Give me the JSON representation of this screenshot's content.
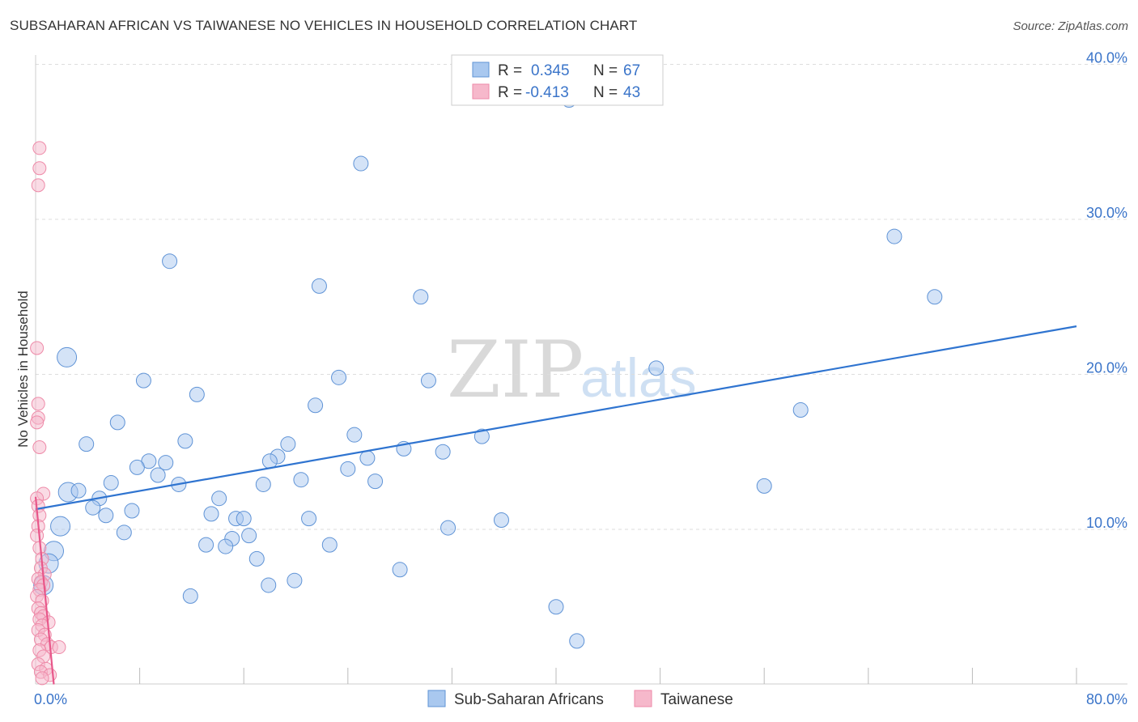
{
  "header": {
    "title": "SUBSAHARAN AFRICAN VS TAIWANESE NO VEHICLES IN HOUSEHOLD CORRELATION CHART",
    "source": "Source: ZipAtlas.com"
  },
  "watermark": {
    "zip": "ZIP",
    "atlas": "atlas"
  },
  "colors": {
    "blue_fill": "#a9c8ef",
    "blue_stroke": "#5f93d6",
    "blue_line": "#2f74d0",
    "pink_fill": "#f6b8cb",
    "pink_stroke": "#ee8aa8",
    "pink_line": "#e8578a",
    "tick_text": "#3a74c9",
    "grid": "#dddddd"
  },
  "chart_data": {
    "type": "scatter",
    "title": "SUBSAHARAN AFRICAN VS TAIWANESE NO VEHICLES IN HOUSEHOLD CORRELATION CHART",
    "xlabel": "",
    "ylabel": "No Vehicles in Household",
    "xlim": [
      0,
      80
    ],
    "ylim": [
      0,
      42
    ],
    "x_tick_labels": {
      "min": "0.0%",
      "max": "80.0%"
    },
    "y_ticks": [
      10,
      20,
      30,
      40
    ],
    "y_tick_labels": [
      "10.0%",
      "20.0%",
      "30.0%",
      "40.0%"
    ],
    "legend": {
      "entries": [
        {
          "r_label": "R =",
          "r": "0.345",
          "n_label": "N =",
          "n": "67"
        },
        {
          "r_label": "R =",
          "r": "-0.413",
          "n_label": "N =",
          "n": "43"
        }
      ],
      "series_names": [
        "Sub-Saharan Africans",
        "Taiwanese"
      ]
    },
    "series": [
      {
        "name": "Sub-Saharan Africans",
        "points": [
          [
            41,
            37.7
          ],
          [
            25,
            33.6
          ],
          [
            66,
            28.9
          ],
          [
            10.3,
            27.3
          ],
          [
            21.8,
            25.7
          ],
          [
            29.6,
            25.0
          ],
          [
            69.1,
            25.0
          ],
          [
            2.4,
            21.1
          ],
          [
            47.7,
            20.4
          ],
          [
            8.3,
            19.6
          ],
          [
            23.3,
            19.8
          ],
          [
            30.2,
            19.6
          ],
          [
            12.4,
            18.7
          ],
          [
            21.5,
            18.0
          ],
          [
            58.8,
            17.7
          ],
          [
            6.3,
            16.9
          ],
          [
            11.5,
            15.7
          ],
          [
            3.9,
            15.5
          ],
          [
            24.5,
            16.1
          ],
          [
            34.3,
            16.0
          ],
          [
            19.4,
            15.5
          ],
          [
            28.3,
            15.2
          ],
          [
            31.3,
            15.0
          ],
          [
            8.7,
            14.4
          ],
          [
            10,
            14.3
          ],
          [
            7.8,
            14.0
          ],
          [
            18.6,
            14.7
          ],
          [
            25.5,
            14.6
          ],
          [
            18.0,
            14.4
          ],
          [
            9.4,
            13.5
          ],
          [
            24.0,
            13.9
          ],
          [
            20.4,
            13.2
          ],
          [
            26.1,
            13.1
          ],
          [
            5.8,
            13.0
          ],
          [
            11.0,
            12.9
          ],
          [
            17.5,
            12.9
          ],
          [
            56,
            12.8
          ],
          [
            2.5,
            12.4
          ],
          [
            3.3,
            12.5
          ],
          [
            4.9,
            12.0
          ],
          [
            14.1,
            12.0
          ],
          [
            4.4,
            11.4
          ],
          [
            7.4,
            11.2
          ],
          [
            13.5,
            11.0
          ],
          [
            5.4,
            10.9
          ],
          [
            15.4,
            10.7
          ],
          [
            16.0,
            10.7
          ],
          [
            21.0,
            10.7
          ],
          [
            35.8,
            10.6
          ],
          [
            1.9,
            10.2
          ],
          [
            31.7,
            10.1
          ],
          [
            6.8,
            9.8
          ],
          [
            16.4,
            9.6
          ],
          [
            15.1,
            9.4
          ],
          [
            13.1,
            9.0
          ],
          [
            14.6,
            8.9
          ],
          [
            22.6,
            9.0
          ],
          [
            1.4,
            8.6
          ],
          [
            17.0,
            8.1
          ],
          [
            1.0,
            7.8
          ],
          [
            28.0,
            7.4
          ],
          [
            0.6,
            6.4
          ],
          [
            19.9,
            6.7
          ],
          [
            17.9,
            6.4
          ],
          [
            11.9,
            5.7
          ],
          [
            40,
            5.0
          ],
          [
            41.6,
            2.8
          ]
        ],
        "trendline": {
          "x": [
            0,
            80
          ],
          "y": [
            11.3,
            23.1
          ]
        }
      },
      {
        "name": "Taiwanese",
        "points": [
          [
            0.3,
            34.6
          ],
          [
            0.3,
            33.3
          ],
          [
            0.2,
            32.2
          ],
          [
            0.1,
            21.7
          ],
          [
            0.2,
            18.1
          ],
          [
            0.2,
            17.2
          ],
          [
            0.1,
            16.9
          ],
          [
            0.3,
            15.3
          ],
          [
            0.6,
            12.3
          ],
          [
            0.1,
            12.0
          ],
          [
            0.2,
            11.5
          ],
          [
            0.3,
            10.9
          ],
          [
            0.2,
            10.2
          ],
          [
            0.1,
            9.6
          ],
          [
            0.3,
            8.8
          ],
          [
            0.5,
            8.1
          ],
          [
            0.4,
            7.5
          ],
          [
            0.7,
            7.1
          ],
          [
            0.2,
            6.8
          ],
          [
            0.4,
            6.6
          ],
          [
            0.6,
            6.4
          ],
          [
            0.3,
            6.1
          ],
          [
            0.1,
            5.7
          ],
          [
            0.5,
            5.4
          ],
          [
            0.2,
            4.9
          ],
          [
            0.4,
            4.6
          ],
          [
            0.6,
            4.4
          ],
          [
            0.3,
            4.2
          ],
          [
            1.0,
            4.0
          ],
          [
            0.5,
            3.8
          ],
          [
            0.2,
            3.5
          ],
          [
            0.7,
            3.2
          ],
          [
            0.4,
            2.9
          ],
          [
            0.9,
            2.6
          ],
          [
            1.2,
            2.4
          ],
          [
            1.8,
            2.4
          ],
          [
            0.3,
            2.2
          ],
          [
            0.6,
            1.8
          ],
          [
            0.2,
            1.3
          ],
          [
            0.8,
            1.0
          ],
          [
            0.4,
            0.8
          ],
          [
            1.1,
            0.6
          ],
          [
            0.5,
            0.4
          ]
        ],
        "trendline": {
          "x": [
            0,
            1.4
          ],
          "y": [
            12.1,
            0.0
          ]
        }
      }
    ]
  }
}
